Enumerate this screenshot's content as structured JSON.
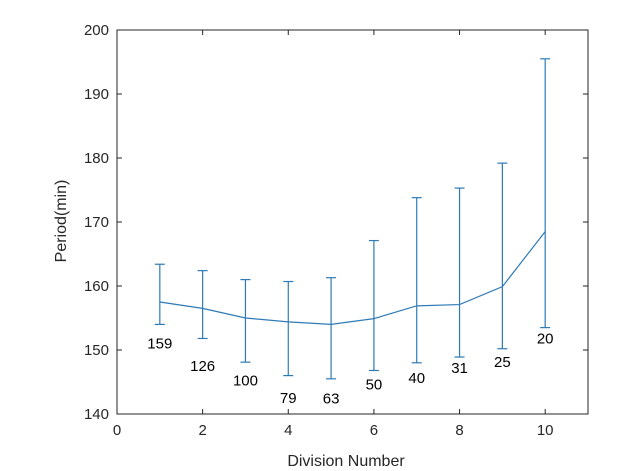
{
  "chart_data": {
    "type": "line",
    "title": "",
    "xlabel": "Division Number",
    "ylabel": "Period(min)",
    "xlim": [
      0,
      11
    ],
    "ylim": [
      140,
      200
    ],
    "xticks": [
      0,
      2,
      4,
      6,
      8,
      10
    ],
    "yticks": [
      140,
      150,
      160,
      170,
      180,
      190,
      200
    ],
    "grid": false,
    "color": "#2e7ab6",
    "x": [
      1,
      2,
      3,
      4,
      5,
      6,
      7,
      8,
      9,
      10
    ],
    "series": [
      {
        "values": [
          157.5,
          156.5,
          155.0,
          154.4,
          154.0,
          154.9,
          156.9,
          157.1,
          159.9,
          168.5
        ],
        "error_upper": [
          163.4,
          162.4,
          161.0,
          160.7,
          161.3,
          167.1,
          173.8,
          175.3,
          179.2,
          195.5
        ],
        "error_lower": [
          154.0,
          151.8,
          148.1,
          146.0,
          145.5,
          146.8,
          148.0,
          148.9,
          150.2,
          153.5
        ]
      }
    ],
    "annotations": [
      "159",
      "126",
      "100",
      "79",
      "63",
      "50",
      "40",
      "31",
      "25",
      "20"
    ],
    "annotation_y": [
      151,
      147.5,
      145.2,
      142.5,
      142.4,
      144.6,
      145.6,
      147.2,
      148.1,
      151.8
    ]
  }
}
